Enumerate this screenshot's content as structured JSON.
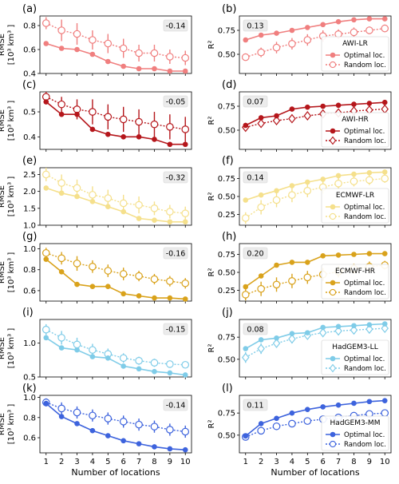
{
  "figure": {
    "xlabel": "Number of locations",
    "rmse_ylabel": [
      "RMSE",
      "[10³ km³ ]"
    ],
    "r2_ylabel": "R²"
  },
  "chart_data": [
    {
      "panel": "(a)",
      "type": "line",
      "metric": "RMSE",
      "model": "AWI-LR",
      "color": "#f07f7f",
      "ylim": [
        0.4,
        0.88
      ],
      "yticks": [
        0.4,
        0.6,
        0.8
      ],
      "ytick_labels": [
        "0.4",
        "0.6",
        "0.8"
      ],
      "annotation": "-0.14",
      "x": [
        1,
        2,
        3,
        4,
        5,
        6,
        7,
        8,
        9,
        10
      ],
      "series": [
        {
          "values": [
            0.65,
            0.61,
            0.6,
            0.56,
            0.5,
            0.46,
            0.44,
            0.44,
            0.42,
            0.42
          ]
        },
        {
          "values": [
            0.82,
            0.76,
            0.73,
            0.68,
            0.65,
            0.61,
            0.57,
            0.57,
            0.54,
            0.53
          ],
          "err": [
            0.05,
            0.09,
            0.09,
            0.08,
            0.08,
            0.08,
            0.07,
            0.07,
            0.06,
            0.06
          ]
        }
      ]
    },
    {
      "panel": "(b)",
      "type": "line",
      "metric": "R2",
      "model": "AWI-LR",
      "color": "#f07f7f",
      "ylim": [
        0.3,
        0.9
      ],
      "yticks": [
        0.5,
        0.75
      ],
      "ytick_labels": [
        "0.50",
        "0.75"
      ],
      "annotation": "0.13",
      "legend": [
        "AWI-LR",
        "Optimal loc.",
        "Random loc."
      ],
      "x": [
        1,
        2,
        3,
        4,
        5,
        6,
        7,
        8,
        9,
        10
      ],
      "series": [
        {
          "values": [
            0.65,
            0.7,
            0.72,
            0.75,
            0.78,
            0.81,
            0.84,
            0.86,
            0.87,
            0.87
          ]
        },
        {
          "values": [
            0.47,
            0.52,
            0.57,
            0.61,
            0.65,
            0.69,
            0.71,
            0.73,
            0.75,
            0.77
          ],
          "err": [
            0.03,
            0.05,
            0.06,
            0.06,
            0.06,
            0.06,
            0.05,
            0.05,
            0.04,
            0.04
          ]
        }
      ]
    },
    {
      "panel": "(c)",
      "type": "line",
      "metric": "RMSE",
      "model": "AWI-HR",
      "color": "#b5161b",
      "ylim": [
        0.35,
        0.58
      ],
      "yticks": [
        0.4,
        0.5
      ],
      "ytick_labels": [
        "0.4",
        "0.5"
      ],
      "annotation": "-0.05",
      "x": [
        1,
        2,
        3,
        4,
        5,
        6,
        7,
        8,
        9,
        10
      ],
      "series": [
        {
          "values": [
            0.54,
            0.49,
            0.49,
            0.43,
            0.41,
            0.4,
            0.4,
            0.39,
            0.37,
            0.37
          ]
        },
        {
          "values": [
            0.56,
            0.53,
            0.51,
            0.5,
            0.48,
            0.47,
            0.46,
            0.45,
            0.44,
            0.43
          ],
          "err": [
            0.02,
            0.03,
            0.04,
            0.05,
            0.05,
            0.05,
            0.05,
            0.05,
            0.05,
            0.05
          ]
        }
      ]
    },
    {
      "panel": "(d)",
      "type": "line",
      "metric": "R2",
      "model": "AWI-HR",
      "color": "#b5161b",
      "ylim": [
        0.3,
        0.9
      ],
      "yticks": [
        0.5,
        0.75
      ],
      "ytick_labels": [
        "0.50",
        "0.75"
      ],
      "annotation": "0.07",
      "legend": [
        "AWI-HR",
        "Optimal loc.",
        "Random loc."
      ],
      "x": [
        1,
        2,
        3,
        4,
        5,
        6,
        7,
        8,
        9,
        10
      ],
      "series": [
        {
          "values": [
            0.55,
            0.63,
            0.65,
            0.72,
            0.74,
            0.75,
            0.76,
            0.77,
            0.78,
            0.79
          ]
        },
        {
          "values": [
            0.53,
            0.57,
            0.6,
            0.62,
            0.65,
            0.67,
            0.68,
            0.7,
            0.71,
            0.72
          ],
          "err": [
            0.02,
            0.04,
            0.04,
            0.04,
            0.04,
            0.04,
            0.04,
            0.03,
            0.03,
            0.03
          ]
        }
      ]
    },
    {
      "panel": "(e)",
      "type": "line",
      "metric": "RMSE",
      "model": "ECMWF-LR",
      "color": "#f5e08c",
      "ylim": [
        1.0,
        2.7
      ],
      "yticks": [
        1.0,
        1.5,
        2.0,
        2.5
      ],
      "ytick_labels": [
        "1.0",
        "1.5",
        "2.0",
        "2.5"
      ],
      "annotation": "-0.32",
      "x": [
        1,
        2,
        3,
        4,
        5,
        6,
        7,
        8,
        9,
        10
      ],
      "series": [
        {
          "values": [
            2.1,
            1.95,
            1.85,
            1.7,
            1.55,
            1.4,
            1.2,
            1.15,
            1.1,
            1.1
          ]
        },
        {
          "values": [
            2.5,
            2.25,
            2.1,
            1.9,
            1.8,
            1.65,
            1.6,
            1.5,
            1.4,
            1.35
          ],
          "err": [
            0.2,
            0.25,
            0.25,
            0.25,
            0.25,
            0.25,
            0.25,
            0.2,
            0.2,
            0.2
          ]
        }
      ]
    },
    {
      "panel": "(f)",
      "type": "line",
      "metric": "R2",
      "model": "ECMWF-LR",
      "color": "#f5e08c",
      "ylim": [
        0.1,
        0.9
      ],
      "yticks": [
        0.25,
        0.5,
        0.75
      ],
      "ytick_labels": [
        "0.25",
        "0.50",
        "0.75"
      ],
      "annotation": "0.14",
      "legend": [
        "ECMWF-LR",
        "Optimal loc.",
        "Random loc."
      ],
      "x": [
        1,
        2,
        3,
        4,
        5,
        6,
        7,
        8,
        9,
        10
      ],
      "series": [
        {
          "values": [
            0.45,
            0.52,
            0.58,
            0.65,
            0.7,
            0.74,
            0.79,
            0.81,
            0.83,
            0.84
          ]
        },
        {
          "values": [
            0.2,
            0.35,
            0.45,
            0.52,
            0.58,
            0.63,
            0.68,
            0.71,
            0.73,
            0.75
          ],
          "err": [
            0.08,
            0.1,
            0.1,
            0.1,
            0.09,
            0.09,
            0.08,
            0.07,
            0.07,
            0.06
          ]
        }
      ]
    },
    {
      "panel": "(g)",
      "type": "line",
      "metric": "RMSE",
      "model": "ECMWF-HR",
      "color": "#d9a21b",
      "ylim": [
        0.5,
        1.05
      ],
      "yticks": [
        0.6,
        0.8,
        1.0
      ],
      "ytick_labels": [
        "0.6",
        "0.8",
        "1.0"
      ],
      "annotation": "-0.16",
      "x": [
        1,
        2,
        3,
        4,
        5,
        6,
        7,
        8,
        9,
        10
      ],
      "series": [
        {
          "values": [
            0.9,
            0.78,
            0.66,
            0.64,
            0.64,
            0.57,
            0.55,
            0.53,
            0.53,
            0.52
          ]
        },
        {
          "values": [
            0.96,
            0.91,
            0.86,
            0.83,
            0.79,
            0.76,
            0.74,
            0.71,
            0.69,
            0.67
          ],
          "err": [
            0.05,
            0.06,
            0.07,
            0.06,
            0.06,
            0.06,
            0.05,
            0.05,
            0.05,
            0.05
          ]
        }
      ]
    },
    {
      "panel": "(h)",
      "type": "line",
      "metric": "R2",
      "model": "ECMWF-HR",
      "color": "#d9a21b",
      "ylim": [
        0.1,
        0.9
      ],
      "yticks": [
        0.25,
        0.5,
        0.75
      ],
      "ytick_labels": [
        "0.25",
        "0.50",
        "0.75"
      ],
      "annotation": "0.20",
      "legend": [
        "ECMWF-HR",
        "Optimal loc.",
        "Random loc."
      ],
      "x": [
        1,
        2,
        3,
        4,
        5,
        6,
        7,
        8,
        9,
        10
      ],
      "series": [
        {
          "values": [
            0.3,
            0.45,
            0.6,
            0.64,
            0.64,
            0.73,
            0.74,
            0.75,
            0.76,
            0.76
          ]
        },
        {
          "values": [
            0.19,
            0.27,
            0.33,
            0.38,
            0.43,
            0.47,
            0.51,
            0.55,
            0.58,
            0.6
          ],
          "err": [
            0.08,
            0.1,
            0.1,
            0.1,
            0.09,
            0.09,
            0.08,
            0.07,
            0.07,
            0.06
          ]
        }
      ]
    },
    {
      "panel": "(i)",
      "type": "line",
      "metric": "RMSE",
      "model": "HadGEM3-LL",
      "color": "#7fcce8",
      "ylim": [
        0.5,
        1.35
      ],
      "yticks": [
        0.5,
        1.0
      ],
      "ytick_labels": [
        "0.5",
        "1.0"
      ],
      "annotation": "-0.15",
      "x": [
        1,
        2,
        3,
        4,
        5,
        6,
        7,
        8,
        9,
        10
      ],
      "series": [
        {
          "values": [
            1.08,
            0.93,
            0.9,
            0.8,
            0.78,
            0.66,
            0.62,
            0.58,
            0.56,
            0.53
          ]
        },
        {
          "values": [
            1.2,
            1.08,
            0.98,
            0.9,
            0.84,
            0.78,
            0.74,
            0.71,
            0.69,
            0.68
          ],
          "err": [
            0.08,
            0.1,
            0.1,
            0.09,
            0.08,
            0.07,
            0.06,
            0.06,
            0.05,
            0.05
          ]
        }
      ]
    },
    {
      "panel": "(j)",
      "type": "line",
      "metric": "R2",
      "model": "HadGEM3-LL",
      "color": "#7fcce8",
      "ylim": [
        0.3,
        0.95
      ],
      "yticks": [
        0.5,
        0.75
      ],
      "ytick_labels": [
        "0.50",
        "0.75"
      ],
      "annotation": "0.08",
      "legend": [
        "HadGEM3-LL",
        "Optimal loc.",
        "Random loc."
      ],
      "x": [
        1,
        2,
        3,
        4,
        5,
        6,
        7,
        8,
        9,
        10
      ],
      "series": [
        {
          "values": [
            0.62,
            0.72,
            0.74,
            0.79,
            0.8,
            0.86,
            0.87,
            0.88,
            0.89,
            0.9
          ]
        },
        {
          "values": [
            0.52,
            0.62,
            0.68,
            0.73,
            0.77,
            0.8,
            0.82,
            0.83,
            0.84,
            0.85
          ],
          "err": [
            0.06,
            0.06,
            0.05,
            0.05,
            0.04,
            0.04,
            0.04,
            0.03,
            0.03,
            0.03
          ]
        }
      ]
    },
    {
      "panel": "(k)",
      "type": "line",
      "metric": "RMSE",
      "model": "HadGEM3-MM",
      "color": "#3d63dd",
      "ylim": [
        0.45,
        1.02
      ],
      "yticks": [
        0.6,
        0.8,
        1.0
      ],
      "ytick_labels": [
        "0.6",
        "0.8",
        "1.0"
      ],
      "annotation": "-0.14",
      "x": [
        1,
        2,
        3,
        4,
        5,
        6,
        7,
        8,
        9,
        10
      ],
      "series": [
        {
          "values": [
            0.94,
            0.81,
            0.74,
            0.67,
            0.62,
            0.57,
            0.54,
            0.51,
            0.49,
            0.48
          ]
        },
        {
          "values": [
            0.95,
            0.89,
            0.85,
            0.82,
            0.79,
            0.76,
            0.73,
            0.71,
            0.68,
            0.66
          ],
          "err": [
            0.04,
            0.06,
            0.06,
            0.06,
            0.06,
            0.06,
            0.06,
            0.06,
            0.06,
            0.06
          ]
        }
      ]
    },
    {
      "panel": "(l)",
      "type": "line",
      "metric": "R2",
      "model": "HadGEM3-MM",
      "color": "#3d63dd",
      "ylim": [
        0.3,
        0.95
      ],
      "yticks": [
        0.5,
        0.75
      ],
      "ytick_labels": [
        "0.50",
        "0.75"
      ],
      "annotation": "0.11",
      "legend": [
        "HadGEM3-MM",
        "Optimal loc.",
        "Random loc."
      ],
      "x": [
        1,
        2,
        3,
        4,
        5,
        6,
        7,
        8,
        9,
        10
      ],
      "series": [
        {
          "values": [
            0.49,
            0.63,
            0.69,
            0.75,
            0.79,
            0.82,
            0.84,
            0.86,
            0.88,
            0.89
          ]
        },
        {
          "values": [
            0.48,
            0.55,
            0.6,
            0.63,
            0.66,
            0.68,
            0.7,
            0.72,
            0.74,
            0.75
          ],
          "err": [
            0.02,
            0.04,
            0.04,
            0.04,
            0.04,
            0.04,
            0.03,
            0.03,
            0.03,
            0.03
          ]
        }
      ]
    }
  ]
}
